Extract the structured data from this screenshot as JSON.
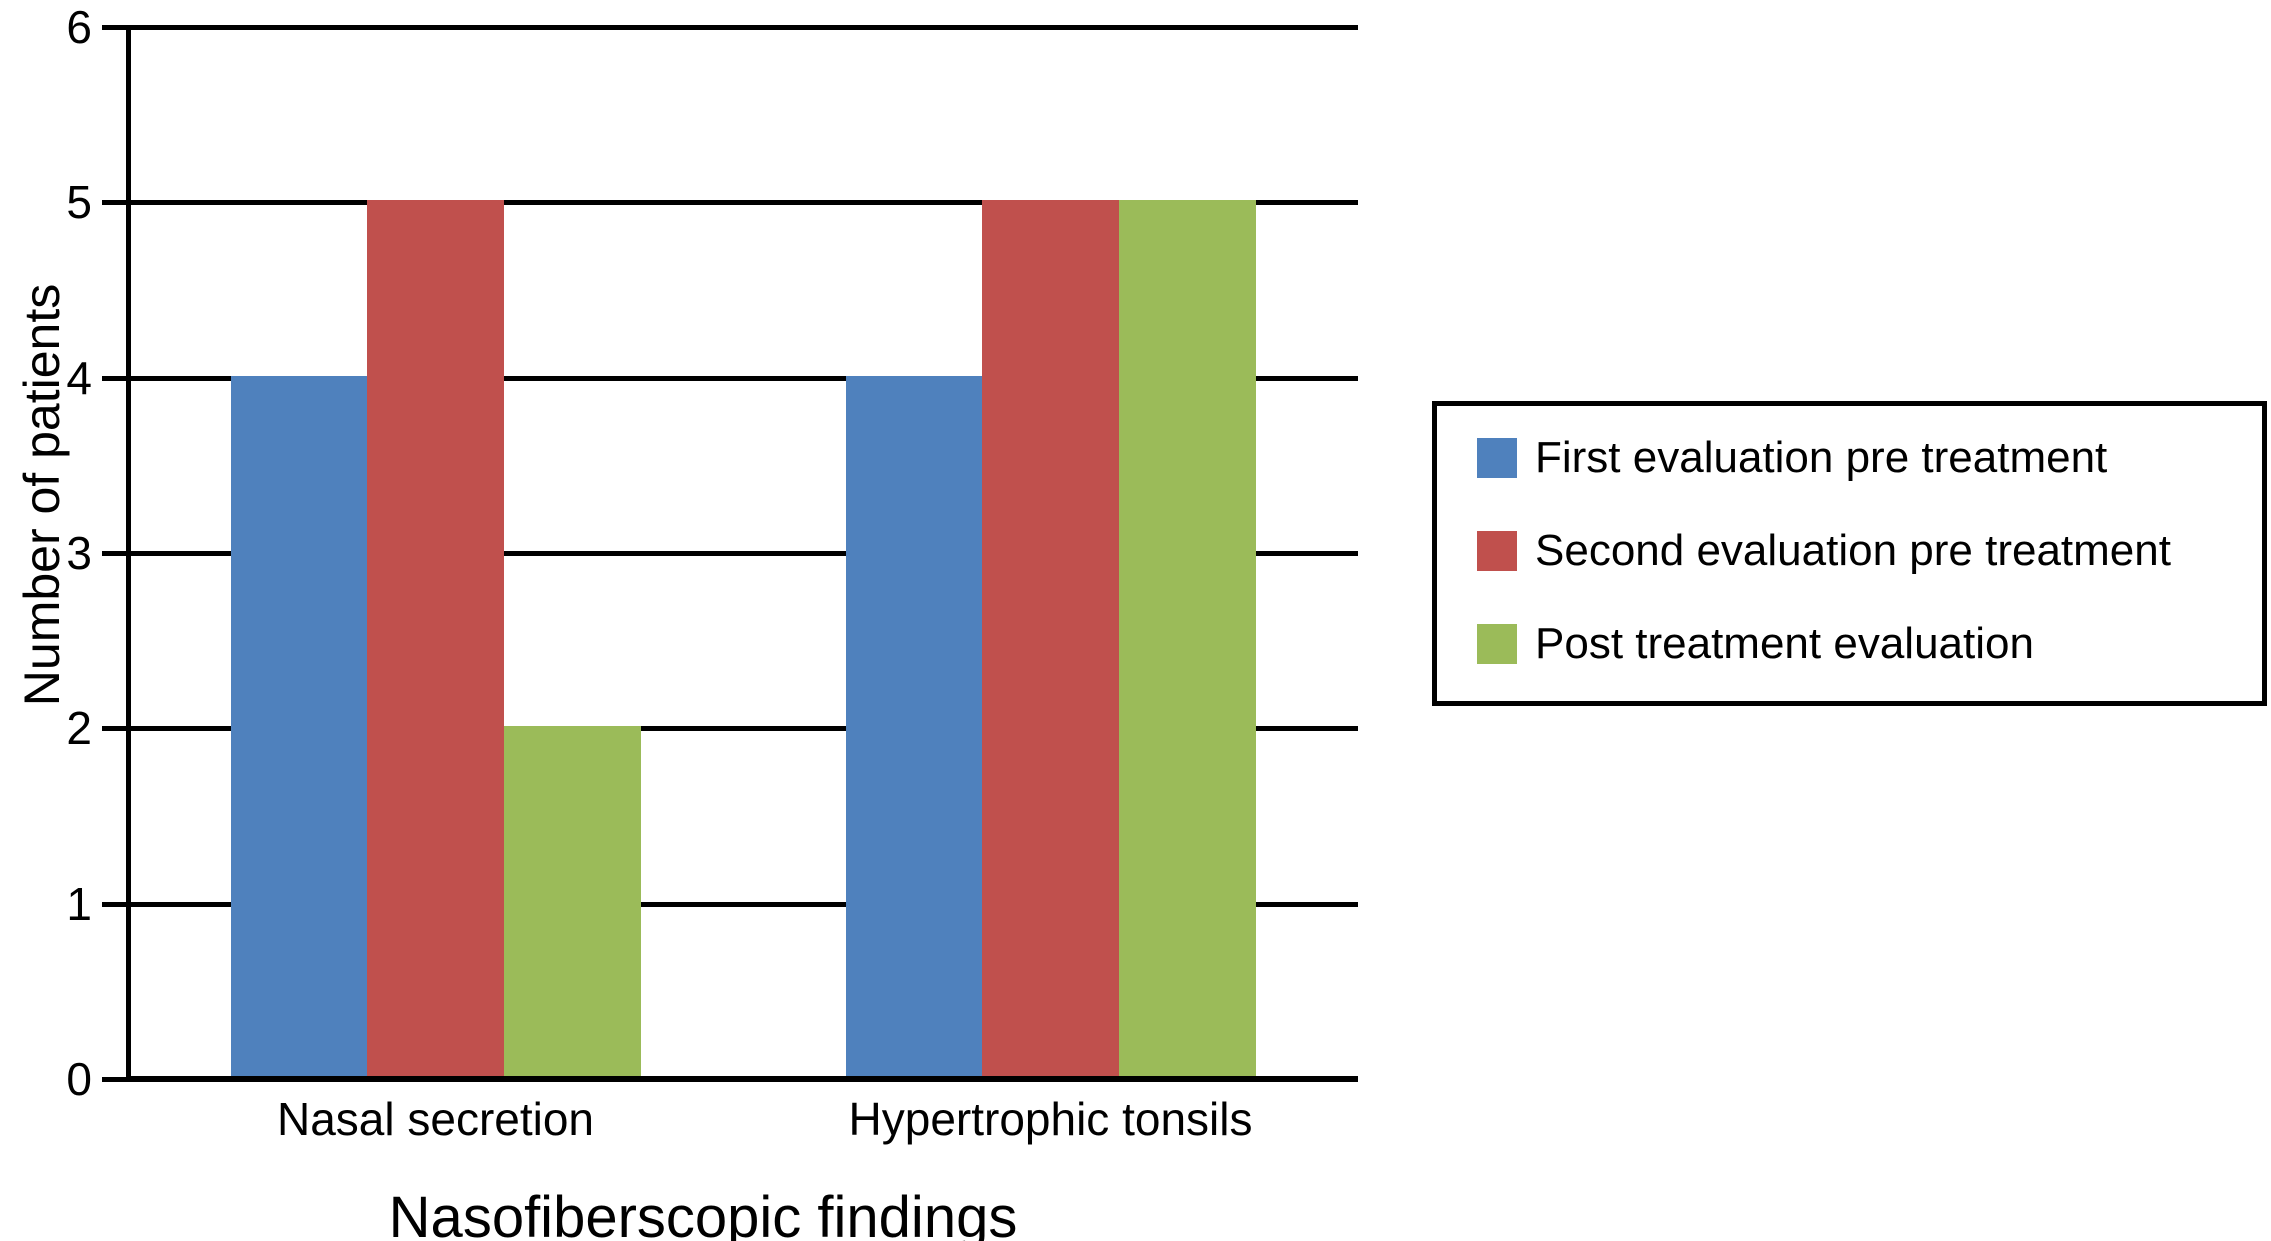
{
  "figure": {
    "background": "#ffffff"
  },
  "chart_data": {
    "type": "bar",
    "title": "",
    "categories": [
      "Nasal secretion",
      "Hypertrophic tonsils"
    ],
    "series": [
      {
        "name": "First evaluation pre treatment",
        "color": "#4F81BD",
        "values": [
          4,
          4
        ]
      },
      {
        "name": "Second evaluation pre treatment",
        "color": "#C0504D",
        "values": [
          5,
          5
        ]
      },
      {
        "name": "Post treatment evaluation",
        "color": "#9BBB59",
        "values": [
          2,
          5
        ]
      }
    ],
    "xlabel": "Nasofiberscopic findings",
    "ylabel": "Number of patients",
    "ylim": [
      0,
      6
    ],
    "ytick_step": 1,
    "yticks": [
      0,
      1,
      2,
      3,
      4,
      5,
      6
    ],
    "grid": true,
    "gridline_color": "#000000",
    "axis_color": "#000000",
    "text_color": "#000000",
    "legend_position": "right",
    "legend_border_color": "#000000",
    "legend_background": "#ffffff"
  }
}
